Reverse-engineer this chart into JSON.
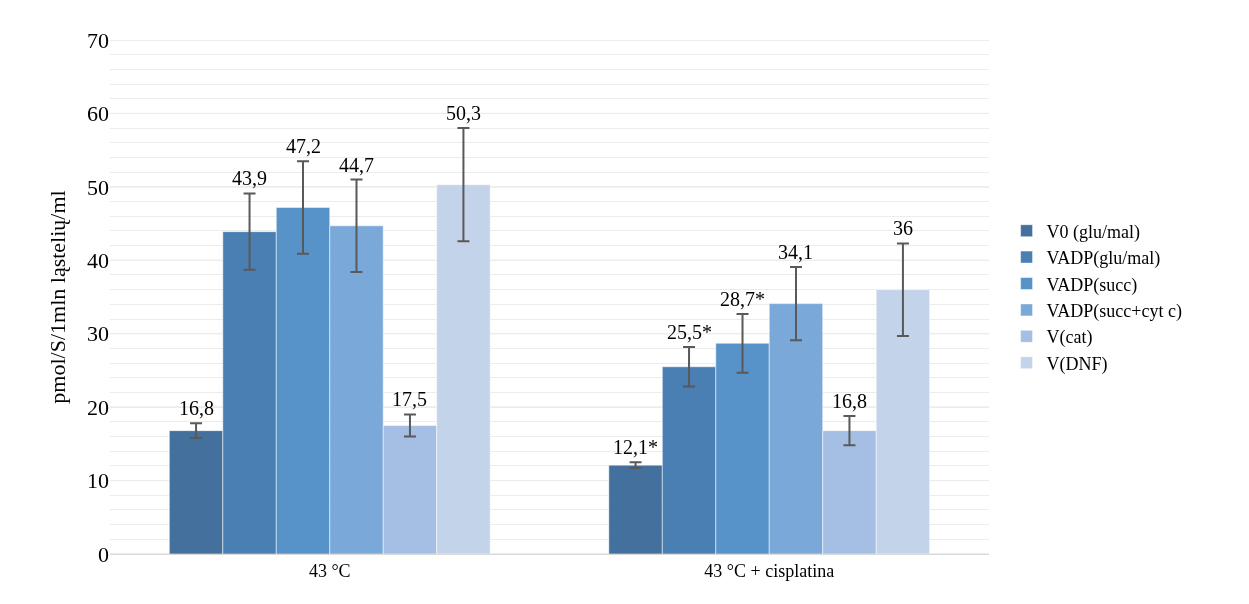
{
  "chart_data": {
    "type": "bar",
    "ylabel": "pmol/S/1mln ląstelių/ml",
    "categories": [
      "43 °C",
      "43 °C + cisplatina"
    ],
    "series": [
      {
        "name": "V0 (glu/mal)",
        "color": "#43709d",
        "values": [
          16.8,
          12.1
        ],
        "errors": [
          1.0,
          0.4
        ],
        "value_labels": [
          "16,8",
          "12,1*"
        ]
      },
      {
        "name": "VADP(glu/mal)",
        "color": "#4a7fb3",
        "values": [
          43.9,
          25.5
        ],
        "errors": [
          5.2,
          2.7
        ],
        "value_labels": [
          "43,9",
          "25,5*"
        ]
      },
      {
        "name": "VADP(succ)",
        "color": "#5793c9",
        "values": [
          47.2,
          28.7
        ],
        "errors": [
          6.3,
          4.0
        ],
        "value_labels": [
          "47,2",
          "28,7*"
        ]
      },
      {
        "name": "VADP(succ+cyt c)",
        "color": "#7aa9d9",
        "values": [
          44.7,
          34.1
        ],
        "errors": [
          6.3,
          5.0
        ],
        "value_labels": [
          "44,7",
          "34,1"
        ]
      },
      {
        "name": "V(cat)",
        "color": "#a4bfe3",
        "values": [
          17.5,
          16.8
        ],
        "errors": [
          1.5,
          2.0
        ],
        "value_labels": [
          "17,5",
          "16,8"
        ]
      },
      {
        "name": "V(DNF)",
        "color": "#c3d3ea",
        "values": [
          50.3,
          36
        ],
        "errors": [
          7.7,
          6.3
        ],
        "value_labels": [
          "50,3",
          "36"
        ]
      }
    ],
    "ylim": [
      0,
      70
    ],
    "yticks": [
      0,
      {
        "value": 2,
        "label": null
      },
      {
        "value": 4,
        "label": null
      },
      {
        "value": 6,
        "label": null
      },
      {
        "value": 8,
        "label": null
      },
      10,
      {
        "value": 12,
        "label": null
      },
      {
        "value": 14,
        "label": null
      },
      {
        "value": 16,
        "label": null
      },
      {
        "value": 18,
        "label": null
      },
      20,
      {
        "value": 22,
        "label": null
      },
      {
        "value": 24,
        "label": null
      },
      {
        "value": 26,
        "label": null
      },
      {
        "value": 28,
        "label": null
      },
      30,
      {
        "value": 32,
        "label": null
      },
      {
        "value": 34,
        "label": null
      },
      {
        "value": 36,
        "label": null
      },
      {
        "value": 38,
        "label": null
      },
      40,
      {
        "value": 42,
        "label": null
      },
      {
        "value": 44,
        "label": null
      },
      {
        "value": 46,
        "label": null
      },
      {
        "value": 48,
        "label": null
      },
      50,
      {
        "value": 52,
        "label": null
      },
      {
        "value": 54,
        "label": null
      },
      {
        "value": 56,
        "label": null
      },
      {
        "value": 58,
        "label": null
      },
      60,
      {
        "value": 62,
        "label": null
      },
      {
        "value": 64,
        "label": null
      },
      {
        "value": 66,
        "label": null
      },
      {
        "value": 68,
        "label": null
      },
      70
    ],
    "grid": "y",
    "legend": "right"
  }
}
